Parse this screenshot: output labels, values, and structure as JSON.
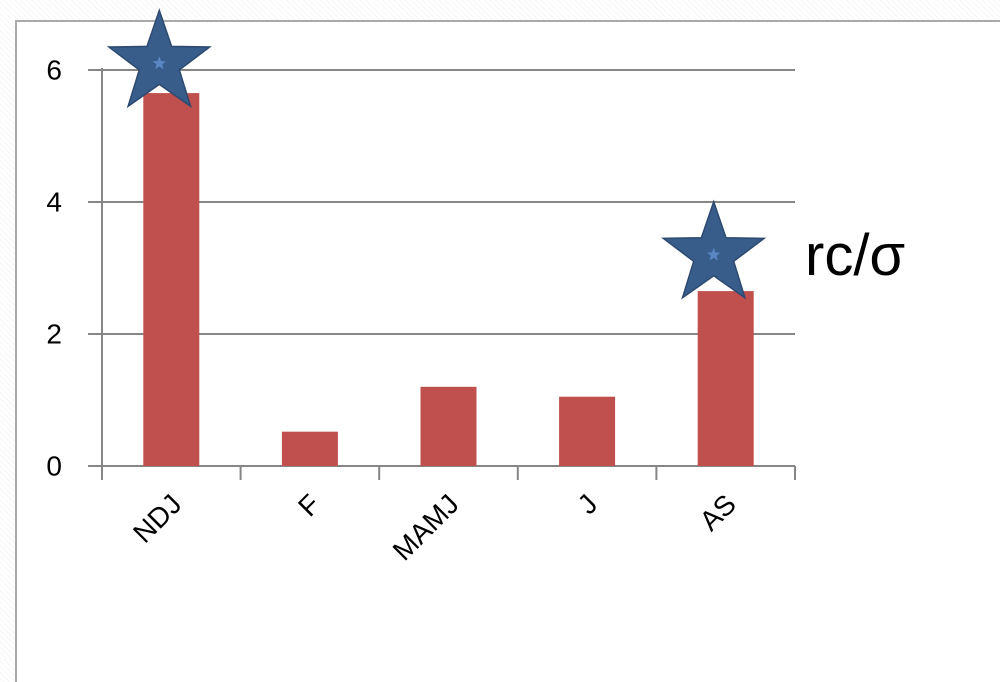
{
  "chart_data": {
    "type": "bar",
    "title": "",
    "xlabel": "",
    "ylabel": "",
    "categories": [
      "NDJ",
      "F",
      "MAMJ",
      "J",
      "AS"
    ],
    "values": [
      5.65,
      0.52,
      1.2,
      1.05,
      2.65
    ],
    "ylim": [
      0,
      6
    ],
    "yticks": [
      0,
      2,
      4,
      6
    ],
    "ytick_labels": [
      "0",
      "2",
      "4",
      "6"
    ],
    "grid": true,
    "legend": "none",
    "bar_color": "#c0504d",
    "gridline_color": "#868686",
    "markers": [
      {
        "icon": "star-icon",
        "category": "NDJ",
        "value": 6.1,
        "color": "#385d8a"
      },
      {
        "icon": "star-icon",
        "category": "AS",
        "value": 3.2,
        "color": "#385d8a"
      }
    ],
    "annotation": "rc/σ"
  }
}
